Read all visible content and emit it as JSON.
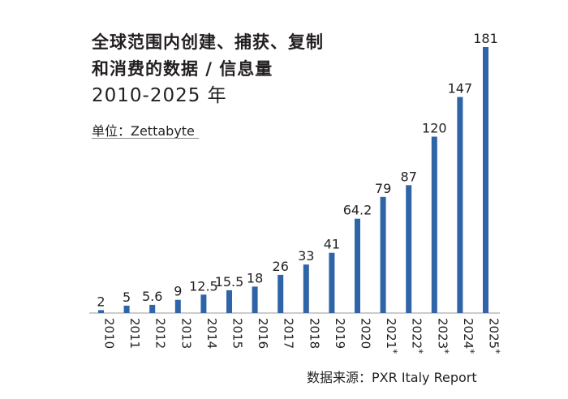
{
  "chart_data": {
    "type": "bar",
    "title_line1": "全球范围内创建、捕获、复制",
    "title_line2": "和消费的数据 / 信息量",
    "title_years": "2010-2025 年",
    "unit": "单位：Zettabyte",
    "source": "数据来源：PXR Italy Report",
    "categories": [
      "2010",
      "2011",
      "2012",
      "2013",
      "2014",
      "2015",
      "2016",
      "2017",
      "2018",
      "2019",
      "2020",
      "2021*",
      "2022*",
      "2023*",
      "2024*",
      "2025*"
    ],
    "values": [
      2,
      5,
      5.6,
      9,
      12.5,
      15.5,
      18,
      26,
      33,
      41,
      64.2,
      79,
      87,
      120,
      147,
      181
    ],
    "value_labels": [
      "2",
      "5",
      "5.6",
      "9",
      "12.5",
      "15.5",
      "18",
      "26",
      "33",
      "41",
      "64.2",
      "79",
      "87",
      "120",
      "147",
      "181"
    ],
    "ylim": [
      0,
      181
    ],
    "bar_color": "#2f64a6",
    "grid": false,
    "legend": "none"
  }
}
